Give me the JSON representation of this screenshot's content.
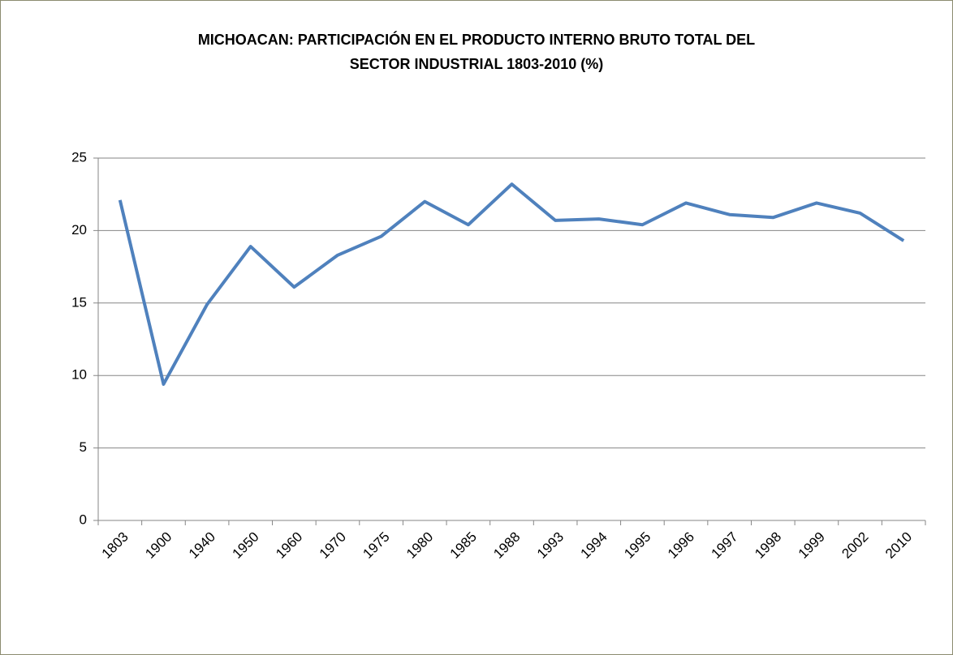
{
  "chart_data": {
    "type": "line",
    "title": "MICHOACAN: PARTICIPACIÓN EN EL PRODUCTO INTERNO BRUTO TOTAL DEL SECTOR INDUSTRIAL 1803-2010 (%)",
    "categories": [
      "1803",
      "1900",
      "1940",
      "1950",
      "1960",
      "1970",
      "1975",
      "1980",
      "1985",
      "1988",
      "1993",
      "1994",
      "1995",
      "1996",
      "1997",
      "1998",
      "1999",
      "2002",
      "2010"
    ],
    "series": [
      {
        "color": "#4f81bd",
        "values": [
          22.1,
          9.4,
          14.9,
          18.9,
          16.1,
          18.3,
          19.6,
          22.0,
          20.4,
          23.2,
          20.7,
          20.8,
          20.4,
          21.9,
          21.1,
          20.9,
          21.9,
          21.2,
          19.3
        ]
      }
    ],
    "ylim": [
      0,
      25
    ],
    "yticks": [
      0,
      5,
      10,
      15,
      20,
      25
    ],
    "grid": true
  }
}
